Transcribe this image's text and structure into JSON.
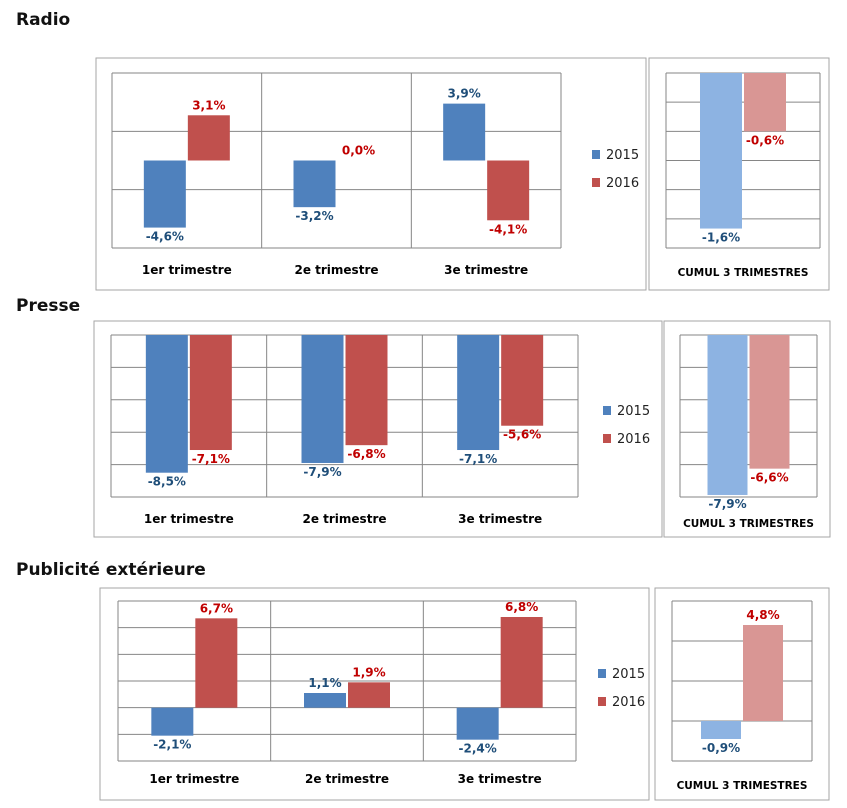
{
  "page": {
    "colors": {
      "s2015": "#4f81bd",
      "s2016": "#c0504d",
      "s2015_light": "#8db3e2",
      "s2016_light": "#d99694",
      "label2015": "#1f4e79",
      "label2016": "#c00000",
      "grid": "#868686",
      "frame": "#a6a6a6"
    }
  },
  "sections": [
    {
      "heading": "Radio"
    },
    {
      "heading": "Presse"
    },
    {
      "heading": "Publicité extérieure"
    }
  ],
  "chart_data": [
    {
      "type": "bar",
      "section": "Radio",
      "categories": [
        "1er trimestre",
        "2e trimestre",
        "3e trimestre"
      ],
      "series": [
        {
          "name": "2015",
          "values": [
            -4.6,
            -3.2,
            3.9
          ],
          "labels": [
            "-4,6%",
            "-3,2%",
            "3,9%"
          ]
        },
        {
          "name": "2016",
          "values": [
            3.1,
            0.0,
            -4.1
          ],
          "labels": [
            "3,1%",
            "0,0%",
            "-4,1%"
          ]
        }
      ],
      "ylim": [
        -6,
        6
      ],
      "grid": true,
      "legend": "right"
    },
    {
      "type": "bar",
      "section": "Radio",
      "categories": [
        "CUMUL 3 TRIMESTRES"
      ],
      "series": [
        {
          "name": "2015",
          "values": [
            -1.6
          ],
          "labels": [
            "-1,6%"
          ]
        },
        {
          "name": "2016",
          "values": [
            -0.6
          ],
          "labels": [
            "-0,6%"
          ]
        }
      ],
      "ylim": [
        -1.8,
        0
      ],
      "grid": true
    },
    {
      "type": "bar",
      "section": "Presse",
      "categories": [
        "1er trimestre",
        "2e trimestre",
        "3e trimestre"
      ],
      "series": [
        {
          "name": "2015",
          "values": [
            -8.5,
            -7.9,
            -7.1
          ],
          "labels": [
            "-8,5%",
            "-7,9%",
            "-7,1%"
          ]
        },
        {
          "name": "2016",
          "values": [
            -7.1,
            -6.8,
            -5.6
          ],
          "labels": [
            "-7,1%",
            "-6,8%",
            "-5,6%"
          ]
        }
      ],
      "ylim": [
        -10,
        0
      ],
      "grid": true,
      "legend": "right"
    },
    {
      "type": "bar",
      "section": "Presse",
      "categories": [
        "CUMUL 3 TRIMESTRES"
      ],
      "series": [
        {
          "name": "2015",
          "values": [
            -7.9
          ],
          "labels": [
            "-7,9%"
          ]
        },
        {
          "name": "2016",
          "values": [
            -6.6
          ],
          "labels": [
            "-6,6%"
          ]
        }
      ],
      "ylim": [
        -8,
        0
      ],
      "grid": true
    },
    {
      "type": "bar",
      "section": "Publicité extérieure",
      "categories": [
        "1er trimestre",
        "2e trimestre",
        "3e trimestre"
      ],
      "series": [
        {
          "name": "2015",
          "values": [
            -2.1,
            1.1,
            -2.4
          ],
          "labels": [
            "-2,1%",
            "1,1%",
            "-2,4%"
          ]
        },
        {
          "name": "2016",
          "values": [
            6.7,
            1.9,
            6.8
          ],
          "labels": [
            "6,7%",
            "1,9%",
            "6,8%"
          ]
        }
      ],
      "ylim": [
        -4,
        8
      ],
      "grid": true,
      "legend": "right"
    },
    {
      "type": "bar",
      "section": "Publicité extérieure",
      "categories": [
        "CUMUL 3 TRIMESTRES"
      ],
      "series": [
        {
          "name": "2015",
          "values": [
            -0.9
          ],
          "labels": [
            "-0,9%"
          ]
        },
        {
          "name": "2016",
          "values": [
            4.8
          ],
          "labels": [
            "4,8%"
          ]
        }
      ],
      "ylim": [
        -2,
        6
      ],
      "grid": true
    }
  ]
}
